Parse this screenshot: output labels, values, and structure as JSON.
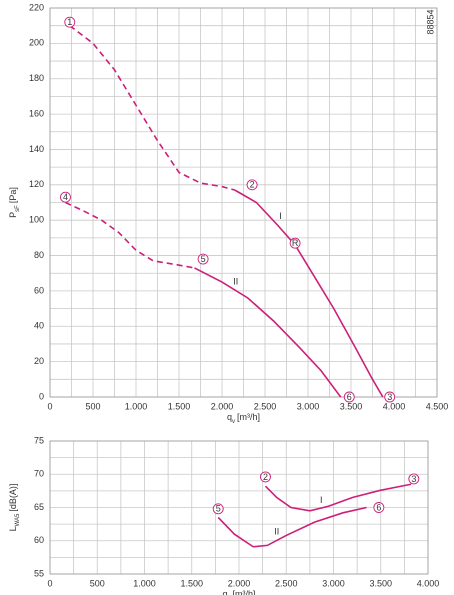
{
  "chart_data": [
    {
      "type": "line",
      "code": "88854",
      "x_label": {
        "main": "q",
        "sub": "v",
        "unit": "[m³/h]"
      },
      "y_label": {
        "main": "P",
        "sub": "sF",
        "unit": "[Pa]"
      },
      "xlim": [
        0,
        4500
      ],
      "ylim": [
        0,
        220
      ],
      "grid": true,
      "minor_grid": true,
      "color": "#cc1f7a",
      "xticks": [
        0,
        500,
        {
          "value": 1000,
          "label": "1.000"
        },
        {
          "value": 1500,
          "label": "1.500"
        },
        {
          "value": 2000,
          "label": "2.000"
        },
        {
          "value": 2500,
          "label": "2.500"
        },
        {
          "value": 3000,
          "label": "3.000"
        },
        {
          "value": 3500,
          "label": "3.500"
        },
        {
          "value": 4000,
          "label": "4.000"
        },
        {
          "value": 4500,
          "label": "4.500"
        }
      ],
      "yticks": [
        0,
        20,
        40,
        60,
        80,
        100,
        120,
        140,
        160,
        180,
        200,
        220
      ],
      "series": [
        {
          "dash": true,
          "x": [
            230,
            500,
            750,
            1000,
            1250,
            1500,
            1750,
            2000,
            2150
          ],
          "values": [
            210,
            200,
            185,
            165,
            145,
            127,
            121,
            119,
            117
          ]
        },
        {
          "dash": false,
          "x": [
            2150,
            2400,
            2650,
            2850,
            3050,
            3300,
            3550,
            3750,
            3870
          ],
          "values": [
            117,
            110,
            97,
            86,
            70,
            50,
            28,
            10,
            0
          ]
        },
        {
          "dash": true,
          "x": [
            180,
            400,
            600,
            800,
            1000,
            1200,
            1450,
            1680
          ],
          "values": [
            110,
            105,
            100,
            93,
            83,
            77,
            75,
            73
          ]
        },
        {
          "dash": false,
          "x": [
            1680,
            2000,
            2300,
            2600,
            2900,
            3150,
            3380
          ],
          "values": [
            73,
            65,
            56,
            43,
            28,
            15,
            0
          ]
        }
      ],
      "markers": [
        {
          "label": "1",
          "x": 230,
          "y": 212
        },
        {
          "label": "2",
          "x": 2350,
          "y": 120
        },
        {
          "label": "3",
          "x": 3950,
          "y": 0
        },
        {
          "label": "4",
          "x": 180,
          "y": 113
        },
        {
          "label": "5",
          "x": 1780,
          "y": 78
        },
        {
          "label": "6",
          "x": 3480,
          "y": 0
        },
        {
          "label": "R",
          "x": 2850,
          "y": 87
        }
      ],
      "annotations": [
        {
          "text": "I",
          "x": 2680,
          "y": 102
        },
        {
          "text": "II",
          "x": 2160,
          "y": 65
        }
      ]
    },
    {
      "type": "line",
      "x_label": {
        "main": "q",
        "sub": "v",
        "unit": "[m³/h]"
      },
      "y_label": {
        "main": "L",
        "sub": "WA5",
        "unit": "[dB(A)]"
      },
      "xlim": [
        0,
        4000
      ],
      "ylim": [
        55,
        75
      ],
      "grid": true,
      "minor_grid": true,
      "color": "#cc1f7a",
      "xticks": [
        0,
        500,
        {
          "value": 1000,
          "label": "1.000"
        },
        {
          "value": 1500,
          "label": "1.500"
        },
        {
          "value": 2000,
          "label": "2.000"
        },
        {
          "value": 2500,
          "label": "2.500"
        },
        {
          "value": 3000,
          "label": "3.000"
        },
        {
          "value": 3500,
          "label": "3.500"
        },
        {
          "value": 4000,
          "label": "4.000"
        }
      ],
      "yticks": [
        55,
        60,
        65,
        70,
        75
      ],
      "series": [
        {
          "dash": false,
          "x": [
            2280,
            2400,
            2550,
            2750,
            2950,
            3200,
            3500,
            3820
          ],
          "values": [
            68.2,
            66.5,
            65,
            64.5,
            65.2,
            66.5,
            67.6,
            68.5
          ]
        },
        {
          "dash": false,
          "x": [
            1780,
            1950,
            2150,
            2300,
            2500,
            2800,
            3100,
            3350
          ],
          "values": [
            63.5,
            61,
            59.1,
            59.3,
            60.8,
            62.8,
            64.2,
            65
          ]
        }
      ],
      "markers": [
        {
          "label": "2",
          "x": 2280,
          "y": 69.6
        },
        {
          "label": "3",
          "x": 3850,
          "y": 69.3
        },
        {
          "label": "5",
          "x": 1780,
          "y": 64.8
        },
        {
          "label": "6",
          "x": 3480,
          "y": 65
        }
      ],
      "annotations": [
        {
          "text": "I",
          "x": 2870,
          "y": 66
        },
        {
          "text": "II",
          "x": 2400,
          "y": 61.3
        }
      ]
    }
  ]
}
